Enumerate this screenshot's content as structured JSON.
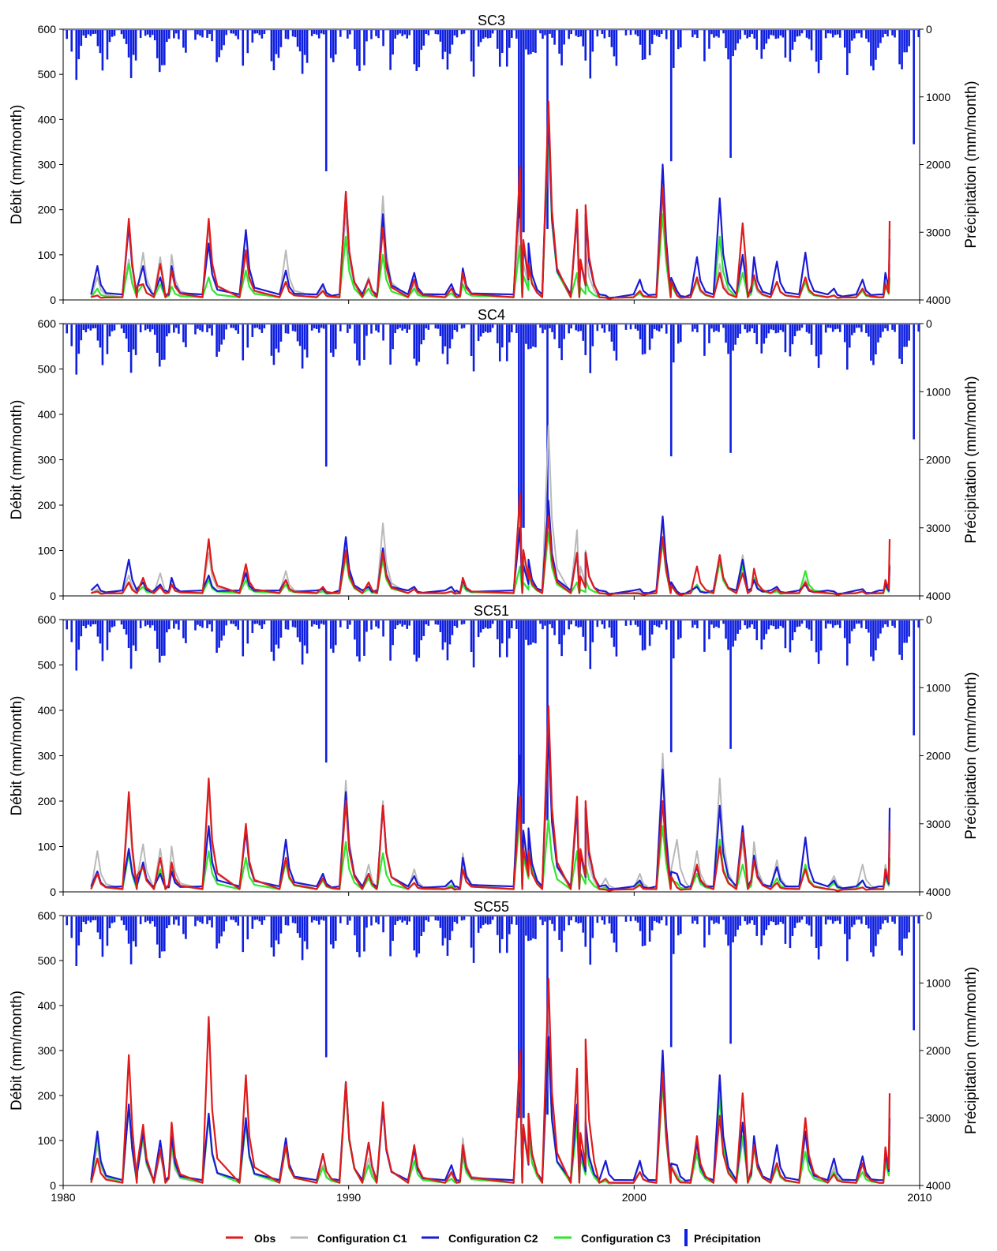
{
  "colors": {
    "obs": "#e01a1a",
    "c1": "#b9b9b9",
    "c2": "#1a1ad6",
    "c3": "#2ee62e",
    "precip": "#0f1fe0"
  },
  "legend": {
    "obs": "Obs",
    "c1": "Configuration C1",
    "c2": "Configuration C2",
    "c3": "Configuration C3",
    "precip": "Précipitation"
  },
  "chart_data": [
    {
      "type": "line",
      "title": "SC3",
      "ylabel": "Débit (mm/month)",
      "y2label": "Précipitation (mm/month)",
      "xlim": [
        1980,
        2010
      ],
      "ylim": [
        0,
        600
      ],
      "y2lim": [
        0,
        4000
      ],
      "y2_inverted": true,
      "xticks": [
        "",
        "",
        "",
        ""
      ],
      "yticks": [
        "0",
        "100",
        "200",
        "300",
        "400",
        "500",
        "600"
      ],
      "y2ticks": [
        "0",
        "1000",
        "2000",
        "3000",
        "4000"
      ],
      "x": [
        1981.2,
        1982.3,
        1982.8,
        1983.4,
        1983.8,
        1985.1,
        1986.4,
        1987.8,
        1989.1,
        1989.9,
        1990.7,
        1991.2,
        1992.3,
        1993.6,
        1994.0,
        1996.0,
        1996.3,
        1997.0,
        1998.0,
        1998.3,
        1999.0,
        2000.2,
        2001.0,
        2001.5,
        2002.2,
        2003.0,
        2003.8,
        2004.2,
        2005.0,
        2006.0,
        2007.0,
        2008.0,
        2008.8,
        2008.95
      ],
      "series": [
        {
          "name": "Obs",
          "values": [
            10,
            180,
            35,
            80,
            65,
            180,
            110,
            40,
            20,
            240,
            45,
            160,
            45,
            25,
            60,
            295,
            80,
            440,
            200,
            210,
            5,
            20,
            250,
            10,
            50,
            60,
            170,
            55,
            40,
            50,
            10,
            25,
            35,
            175
          ]
        },
        {
          "name": "Configuration C1",
          "values": [
            50,
            90,
            105,
            95,
            100,
            165,
            100,
            110,
            30,
            195,
            50,
            230,
            35,
            25,
            55,
            180,
            90,
            415,
            180,
            115,
            5,
            20,
            230,
            15,
            40,
            80,
            90,
            40,
            40,
            50,
            10,
            25,
            40,
            80
          ]
        },
        {
          "name": "Configuration C2",
          "values": [
            75,
            165,
            75,
            50,
            75,
            125,
            155,
            65,
            35,
            235,
            45,
            190,
            60,
            35,
            70,
            275,
            125,
            405,
            190,
            190,
            10,
            45,
            300,
            20,
            95,
            225,
            100,
            95,
            85,
            105,
            25,
            45,
            60,
            135
          ]
        },
        {
          "name": "Configuration C3",
          "values": [
            25,
            80,
            35,
            35,
            30,
            50,
            65,
            40,
            20,
            140,
            25,
            100,
            25,
            15,
            35,
            120,
            80,
            380,
            60,
            45,
            5,
            15,
            190,
            10,
            45,
            140,
            60,
            50,
            40,
            40,
            10,
            20,
            30,
            50
          ]
        }
      ],
      "precip_notes": {
        "max_mm": 3050,
        "max_x": 1996.2
      }
    },
    {
      "type": "line",
      "title": "SC4",
      "ylabel": "Débit (mm/month)",
      "y2label": "Précipitation (mm/month)",
      "xlim": [
        1980,
        2010
      ],
      "ylim": [
        0,
        600
      ],
      "y2lim": [
        0,
        4000
      ],
      "y2_inverted": true,
      "xticks": [
        "",
        "",
        "",
        ""
      ],
      "yticks": [
        "0",
        "100",
        "200",
        "300",
        "400",
        "500",
        "600"
      ],
      "y2ticks": [
        "0",
        "1000",
        "2000",
        "3000",
        "4000"
      ],
      "x": [
        1981.2,
        1982.3,
        1982.8,
        1983.4,
        1983.8,
        1985.1,
        1986.4,
        1987.8,
        1989.1,
        1989.9,
        1990.7,
        1991.2,
        1992.3,
        1993.6,
        1994.0,
        1996.0,
        1996.3,
        1997.0,
        1998.0,
        1998.3,
        1999.0,
        2000.2,
        2001.0,
        2001.5,
        2002.2,
        2003.0,
        2003.8,
        2004.2,
        2005.0,
        2006.0,
        2007.0,
        2008.0,
        2008.8,
        2008.95
      ],
      "series": [
        {
          "name": "Obs",
          "values": [
            10,
            30,
            40,
            20,
            25,
            125,
            70,
            35,
            20,
            100,
            30,
            95,
            15,
            10,
            40,
            225,
            60,
            175,
            95,
            95,
            5,
            5,
            130,
            5,
            65,
            90,
            50,
            60,
            15,
            30,
            5,
            10,
            35,
            125
          ]
        },
        {
          "name": "Configuration C1",
          "values": [
            15,
            45,
            30,
            50,
            35,
            95,
            55,
            55,
            15,
            115,
            25,
            160,
            15,
            10,
            35,
            175,
            80,
            375,
            145,
            100,
            5,
            10,
            160,
            10,
            25,
            85,
            90,
            35,
            15,
            35,
            5,
            10,
            25,
            70
          ]
        },
        {
          "name": "Configuration C2",
          "values": [
            25,
            80,
            30,
            25,
            40,
            45,
            50,
            35,
            15,
            130,
            20,
            105,
            20,
            20,
            35,
            150,
            80,
            210,
            95,
            95,
            10,
            15,
            175,
            10,
            20,
            90,
            80,
            35,
            20,
            25,
            10,
            15,
            25,
            65
          ]
        },
        {
          "name": "Configuration C3",
          "values": [
            10,
            30,
            20,
            25,
            25,
            35,
            35,
            25,
            10,
            85,
            15,
            80,
            15,
            10,
            25,
            65,
            50,
            140,
            30,
            35,
            5,
            5,
            120,
            5,
            25,
            75,
            65,
            40,
            10,
            55,
            5,
            10,
            20,
            70
          ]
        }
      ],
      "precip_notes": {
        "max_mm": 3050,
        "max_x": 1996.2
      }
    },
    {
      "type": "line",
      "title": "SC51",
      "ylabel": "Débit (mm/month)",
      "y2label": "Précipitation (mm/month)",
      "xlim": [
        1980,
        2010
      ],
      "ylim": [
        0,
        600
      ],
      "y2lim": [
        0,
        4000
      ],
      "y2_inverted": true,
      "xticks": [
        "",
        "",
        "",
        ""
      ],
      "yticks": [
        "0",
        "100",
        "200",
        "300",
        "400",
        "500",
        "600"
      ],
      "y2ticks": [
        "0",
        "1000",
        "2000",
        "3000",
        "4000"
      ],
      "x": [
        1981.2,
        1982.3,
        1982.8,
        1983.4,
        1983.8,
        1985.1,
        1986.4,
        1987.8,
        1989.1,
        1989.9,
        1990.7,
        1991.2,
        1992.3,
        1993.6,
        1994.0,
        1996.0,
        1996.3,
        1997.0,
        1998.0,
        1998.3,
        1999.0,
        2000.2,
        2001.0,
        2001.5,
        2002.2,
        2003.0,
        2003.8,
        2004.2,
        2005.0,
        2006.0,
        2007.0,
        2008.0,
        2008.8,
        2008.95
      ],
      "series": [
        {
          "name": "Obs",
          "values": [
            40,
            220,
            55,
            75,
            65,
            250,
            150,
            75,
            30,
            200,
            40,
            190,
            20,
            10,
            50,
            210,
            90,
            410,
            210,
            200,
            5,
            15,
            200,
            10,
            60,
            100,
            130,
            70,
            20,
            50,
            5,
            10,
            50,
            135
          ]
        },
        {
          "name": "Configuration C1",
          "values": [
            90,
            185,
            105,
            95,
            100,
            230,
            145,
            115,
            35,
            245,
            60,
            200,
            50,
            25,
            85,
            255,
            110,
            330,
            170,
            130,
            30,
            40,
            305,
            115,
            90,
            250,
            110,
            110,
            70,
            60,
            35,
            60,
            60,
            140
          ]
        },
        {
          "name": "Configuration C2",
          "values": [
            45,
            95,
            65,
            40,
            45,
            145,
            135,
            115,
            40,
            220,
            40,
            190,
            35,
            25,
            75,
            300,
            140,
            345,
            190,
            185,
            15,
            25,
            270,
            40,
            55,
            190,
            145,
            80,
            55,
            120,
            25,
            25,
            40,
            185
          ]
        },
        {
          "name": "Configuration C3",
          "values": [
            40,
            85,
            60,
            50,
            60,
            90,
            75,
            65,
            25,
            110,
            30,
            85,
            20,
            15,
            50,
            170,
            110,
            160,
            90,
            60,
            10,
            20,
            145,
            20,
            40,
            115,
            60,
            70,
            30,
            60,
            20,
            25,
            30,
            75
          ]
        }
      ],
      "precip_notes": {
        "max_mm": 3050,
        "max_x": 1996.2
      }
    },
    {
      "type": "line",
      "title": "SC55",
      "ylabel": "Débit (mm/month)",
      "y2label": "Précipitation (mm/month)",
      "xlim": [
        1980,
        2010
      ],
      "ylim": [
        0,
        600
      ],
      "y2lim": [
        0,
        4000
      ],
      "y2_inverted": true,
      "xticks": [
        "1980",
        "1990",
        "2000",
        "2010"
      ],
      "yticks": [
        "0",
        "100",
        "200",
        "300",
        "400",
        "500",
        "600"
      ],
      "y2ticks": [
        "0",
        "1000",
        "2000",
        "3000",
        "4000"
      ],
      "x": [
        1981.2,
        1982.3,
        1982.8,
        1983.4,
        1983.8,
        1985.1,
        1986.4,
        1987.8,
        1989.1,
        1989.9,
        1990.7,
        1991.2,
        1992.3,
        1993.6,
        1994.0,
        1996.0,
        1996.3,
        1997.0,
        1998.0,
        1998.3,
        1999.0,
        2000.2,
        2001.0,
        2001.5,
        2002.2,
        2003.0,
        2003.8,
        2004.2,
        2005.0,
        2006.0,
        2007.0,
        2008.0,
        2008.8,
        2008.95
      ],
      "series": [
        {
          "name": "Obs",
          "values": [
            60,
            290,
            135,
            80,
            140,
            375,
            245,
            90,
            70,
            230,
            95,
            185,
            90,
            30,
            90,
            300,
            160,
            460,
            260,
            325,
            15,
            30,
            250,
            15,
            110,
            155,
            205,
            90,
            50,
            150,
            25,
            50,
            85,
            205
          ]
        },
        {
          "name": "Configuration C1",
          "values": [
            90,
            175,
            100,
            70,
            80,
            150,
            145,
            90,
            45,
            220,
            60,
            175,
            55,
            25,
            105,
            275,
            110,
            430,
            160,
            150,
            10,
            50,
            270,
            25,
            80,
            220,
            100,
            90,
            50,
            110,
            40,
            45,
            60,
            190
          ]
        },
        {
          "name": "Configuration C2",
          "values": [
            120,
            180,
            120,
            100,
            110,
            160,
            150,
            105,
            70,
            230,
            95,
            175,
            80,
            45,
            85,
            285,
            155,
            330,
            180,
            140,
            55,
            55,
            300,
            45,
            95,
            245,
            140,
            110,
            90,
            120,
            60,
            65,
            70,
            150
          ]
        },
        {
          "name": "Configuration C3",
          "values": [
            110,
            180,
            110,
            80,
            95,
            155,
            140,
            85,
            40,
            220,
            45,
            180,
            55,
            15,
            65,
            285,
            115,
            320,
            135,
            100,
            10,
            30,
            230,
            20,
            70,
            200,
            110,
            85,
            40,
            75,
            30,
            30,
            50,
            110
          ]
        }
      ],
      "precip_notes": {
        "max_mm": 3050,
        "max_x": 1996.2
      }
    }
  ]
}
